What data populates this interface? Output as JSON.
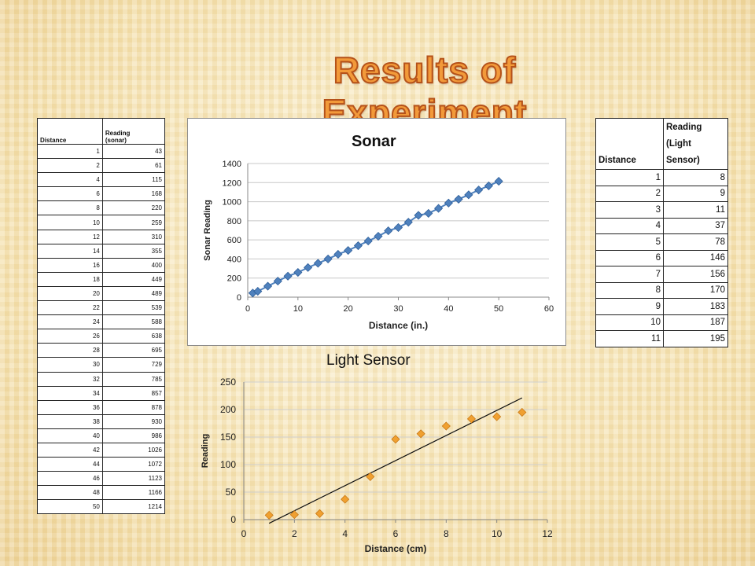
{
  "slide": {
    "title": "Results of Experiment"
  },
  "sonar_table": {
    "headers": [
      "Distance",
      "Reading\n(sonar)"
    ],
    "rows": [
      [
        1,
        43
      ],
      [
        2,
        61
      ],
      [
        4,
        115
      ],
      [
        6,
        168
      ],
      [
        8,
        220
      ],
      [
        10,
        259
      ],
      [
        12,
        310
      ],
      [
        14,
        355
      ],
      [
        16,
        400
      ],
      [
        18,
        449
      ],
      [
        20,
        489
      ],
      [
        22,
        539
      ],
      [
        24,
        588
      ],
      [
        26,
        638
      ],
      [
        28,
        695
      ],
      [
        30,
        729
      ],
      [
        32,
        785
      ],
      [
        34,
        857
      ],
      [
        36,
        878
      ],
      [
        38,
        930
      ],
      [
        40,
        986
      ],
      [
        42,
        1026
      ],
      [
        44,
        1072
      ],
      [
        46,
        1123
      ],
      [
        48,
        1166
      ],
      [
        50,
        1214
      ]
    ]
  },
  "light_table": {
    "headers": [
      "Distance",
      "Reading\n(Light\nSensor)"
    ],
    "rows": [
      [
        1,
        8
      ],
      [
        2,
        9
      ],
      [
        3,
        11
      ],
      [
        4,
        37
      ],
      [
        5,
        78
      ],
      [
        6,
        146
      ],
      [
        7,
        156
      ],
      [
        8,
        170
      ],
      [
        9,
        183
      ],
      [
        10,
        187
      ],
      [
        11,
        195
      ]
    ]
  },
  "chart_data": [
    {
      "type": "scatter",
      "title": "Sonar",
      "xlabel": "Distance (in.)",
      "ylabel": "Sonar Reading",
      "xlim": [
        0,
        60
      ],
      "ylim": [
        0,
        1400
      ],
      "xticks": [
        "0",
        "10",
        "20",
        "30",
        "40",
        "50",
        "60"
      ],
      "yticks": [
        "0",
        "200",
        "400",
        "600",
        "800",
        "1000",
        "1200",
        "1400"
      ],
      "marker_color": "#4f81bd",
      "connected": true,
      "x": [
        1,
        2,
        4,
        6,
        8,
        10,
        12,
        14,
        16,
        18,
        20,
        22,
        24,
        26,
        28,
        30,
        32,
        34,
        36,
        38,
        40,
        42,
        44,
        46,
        48,
        50
      ],
      "y": [
        43,
        61,
        115,
        168,
        220,
        259,
        310,
        355,
        400,
        449,
        489,
        539,
        588,
        638,
        695,
        729,
        785,
        857,
        878,
        930,
        986,
        1026,
        1072,
        1123,
        1166,
        1214
      ]
    },
    {
      "type": "scatter",
      "title": "Light Sensor",
      "xlabel": "Distance (cm)",
      "ylabel": "Reading",
      "xlim": [
        0,
        12
      ],
      "ylim": [
        0,
        250
      ],
      "xticks": [
        "0",
        "2",
        "4",
        "6",
        "8",
        "10",
        "12"
      ],
      "yticks": [
        "0",
        "50",
        "100",
        "150",
        "200",
        "250"
      ],
      "marker_color": "#f0a030",
      "trendline": true,
      "x": [
        1,
        2,
        3,
        4,
        5,
        6,
        7,
        8,
        9,
        10,
        11
      ],
      "y": [
        8,
        9,
        11,
        37,
        78,
        146,
        156,
        170,
        183,
        187,
        195
      ]
    }
  ]
}
